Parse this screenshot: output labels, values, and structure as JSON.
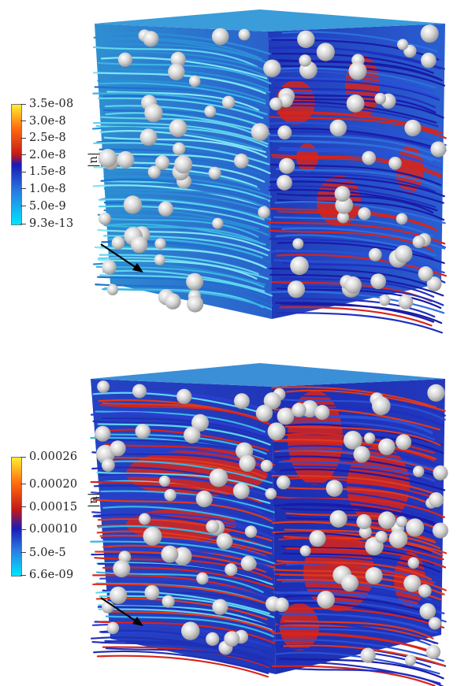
{
  "panels": [
    {
      "colorbar": {
        "quantity": "|u|",
        "ticks": [
          "3.5e-08",
          "3.0e-8",
          "2.5e-8",
          "2.0e-8",
          "1.5e-8",
          "1.0e-8",
          "5.0e-9",
          "9.3e-13"
        ]
      }
    },
    {
      "colorbar": {
        "quantity": "|u|",
        "ticks": [
          "0.00026",
          "0.00020",
          "0.00015",
          "0.00010",
          "5.0e-5",
          "6.6e-09"
        ]
      }
    }
  ],
  "colors": {
    "background": "#ffffff",
    "colormap": [
      "#00e5ff",
      "#1f7fd6",
      "#2a3ec9",
      "#1919b5",
      "#d61a1a",
      "#ff5a10",
      "#ffb300",
      "#ffee30"
    ],
    "sphere": "#cfcfcf",
    "arrow": "#000000"
  }
}
